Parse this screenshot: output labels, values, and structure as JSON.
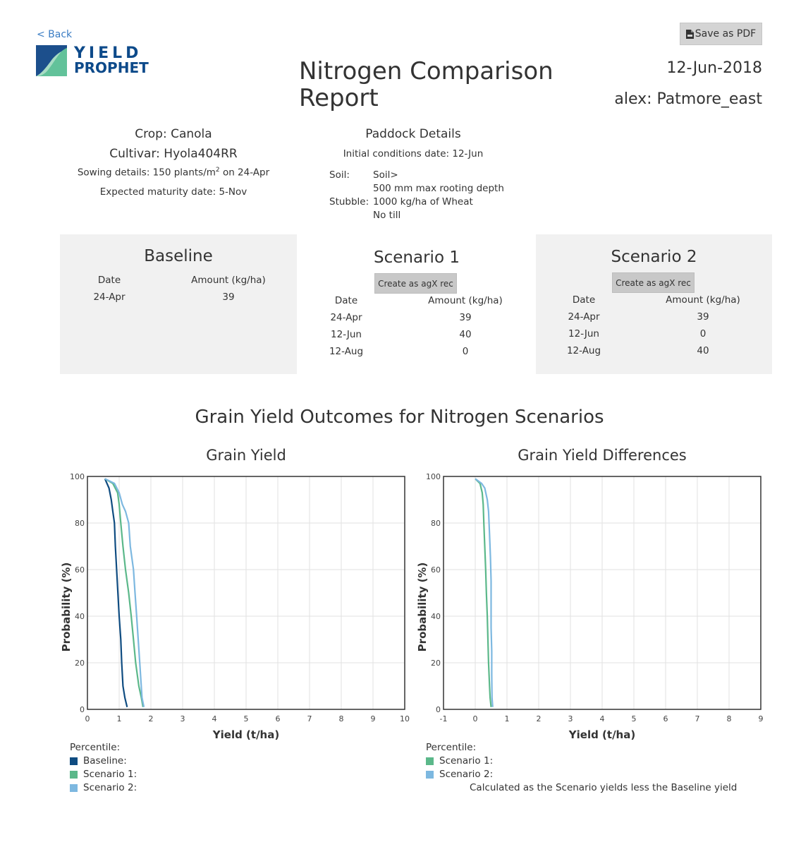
{
  "nav": {
    "back_label": "< Back"
  },
  "logo": {
    "line1": "YIELD",
    "line2": "PROPHET"
  },
  "header": {
    "title_line1": "Nitrogen Comparison",
    "title_line2": "Report",
    "date": "12-Jun-2018",
    "user_paddock": "alex: Patmore_east",
    "save_pdf_label": "Save as PDF"
  },
  "crop": {
    "crop": "Crop: Canola",
    "cultivar": "Cultivar: Hyola404RR",
    "sowing_prefix": "Sowing details: 150 plants/m",
    "sowing_sup": "2",
    "sowing_suffix": " on 24-Apr",
    "maturity": "Expected maturity date: 5-Nov"
  },
  "paddock": {
    "heading": "Paddock Details",
    "initial_conditions": "Initial conditions date: 12-Jun",
    "soil_label": "Soil:",
    "soil_value": "Soil>",
    "rooting_depth": "500 mm max rooting depth",
    "stubble_label": "Stubble:",
    "stubble_value": "1000 kg/ha of Wheat",
    "till": "No till"
  },
  "scenarios": {
    "date_header": "Date",
    "amount_header": "Amount (kg/ha)",
    "agx_label": "Create as agX rec",
    "baseline": {
      "title": "Baseline",
      "rows": [
        {
          "date": "24-Apr",
          "amount": "39"
        }
      ]
    },
    "scenario1": {
      "title": "Scenario 1",
      "rows": [
        {
          "date": "24-Apr",
          "amount": "39"
        },
        {
          "date": "12-Jun",
          "amount": "40"
        },
        {
          "date": "12-Aug",
          "amount": "0"
        }
      ]
    },
    "scenario2": {
      "title": "Scenario 2",
      "rows": [
        {
          "date": "24-Apr",
          "amount": "39"
        },
        {
          "date": "12-Jun",
          "amount": "0"
        },
        {
          "date": "12-Aug",
          "amount": "40"
        }
      ]
    }
  },
  "outcomes": {
    "section_title": "Grain Yield Outcomes for Nitrogen Scenarios",
    "legend_heading": "Percentile:",
    "differences_note": "Calculated as the Scenario yields less the Baseline yield"
  },
  "colors": {
    "baseline": "#0f4c81",
    "scenario1": "#5bb88a",
    "scenario2": "#7db8e0",
    "axis": "#333333",
    "grid": "#e2e2e2"
  },
  "chart_data": [
    {
      "type": "line",
      "title": "Grain Yield",
      "xlabel": "Yield (t/ha)",
      "ylabel": "Probability (%)",
      "xlim": [
        0,
        10
      ],
      "ylim": [
        0,
        100
      ],
      "xticks": [
        0,
        1,
        2,
        3,
        4,
        5,
        6,
        7,
        8,
        9,
        10
      ],
      "yticks": [
        0,
        20,
        40,
        60,
        80,
        100
      ],
      "grid": true,
      "legend": "below-left",
      "series": [
        {
          "name": "Baseline:",
          "color": "#0f4c81",
          "x": [
            0.55,
            0.68,
            0.75,
            0.8,
            0.85,
            0.88,
            0.92,
            0.96,
            1.0,
            1.05,
            1.08,
            1.12,
            1.18,
            1.25
          ],
          "y": [
            99,
            95,
            90,
            85,
            80,
            70,
            60,
            50,
            40,
            30,
            20,
            10,
            5,
            1
          ]
        },
        {
          "name": "Scenario 1:",
          "color": "#5bb88a",
          "x": [
            0.55,
            0.8,
            0.95,
            1.0,
            1.05,
            1.12,
            1.2,
            1.3,
            1.38,
            1.45,
            1.52,
            1.62,
            1.7,
            1.75
          ],
          "y": [
            99,
            97,
            93,
            88,
            80,
            70,
            60,
            50,
            40,
            30,
            20,
            10,
            5,
            1
          ]
        },
        {
          "name": "Scenario 2:",
          "color": "#7db8e0",
          "x": [
            0.55,
            0.85,
            1.0,
            1.1,
            1.2,
            1.3,
            1.35,
            1.45,
            1.5,
            1.55,
            1.6,
            1.65,
            1.72,
            1.78
          ],
          "y": [
            99,
            97,
            93,
            88,
            85,
            80,
            70,
            60,
            50,
            40,
            30,
            20,
            5,
            1
          ]
        }
      ]
    },
    {
      "type": "line",
      "title": "Grain Yield Differences",
      "xlabel": "Yield (t/ha)",
      "ylabel": "Probability (%)",
      "xlim": [
        -1,
        9
      ],
      "ylim": [
        0,
        100
      ],
      "xticks": [
        -1,
        0,
        1,
        2,
        3,
        4,
        5,
        6,
        7,
        8,
        9
      ],
      "yticks": [
        0,
        20,
        40,
        60,
        80,
        100
      ],
      "grid": true,
      "legend": "below-left",
      "series": [
        {
          "name": "Scenario 1:",
          "color": "#5bb88a",
          "x": [
            0.0,
            0.15,
            0.22,
            0.25,
            0.27,
            0.3,
            0.33,
            0.35,
            0.38,
            0.4,
            0.42,
            0.45,
            0.47,
            0.5
          ],
          "y": [
            99,
            97,
            93,
            88,
            80,
            70,
            60,
            50,
            40,
            30,
            20,
            10,
            5,
            1
          ]
        },
        {
          "name": "Scenario 2:",
          "color": "#7db8e0",
          "x": [
            0.0,
            0.2,
            0.3,
            0.38,
            0.42,
            0.45,
            0.48,
            0.5,
            0.5,
            0.5,
            0.52,
            0.52,
            0.53,
            0.55
          ],
          "y": [
            99,
            97,
            95,
            90,
            85,
            75,
            65,
            55,
            45,
            35,
            25,
            15,
            5,
            1
          ]
        }
      ]
    }
  ]
}
